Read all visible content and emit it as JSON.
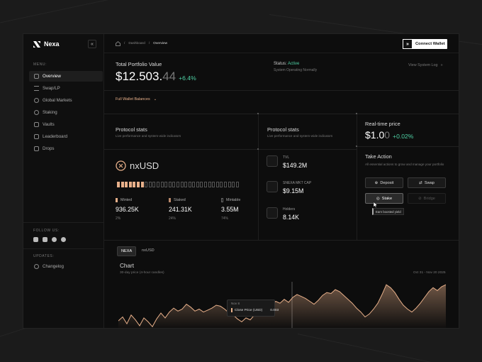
{
  "app": {
    "name": "Nexa",
    "collapse_icon": "«"
  },
  "sidebar": {
    "menu_label": "MENU:",
    "items": [
      {
        "label": "Overview",
        "icon": "grid-icon"
      },
      {
        "label": "Swap/LP",
        "icon": "swap-icon"
      },
      {
        "label": "Global Markets",
        "icon": "globe-icon"
      },
      {
        "label": "Staking",
        "icon": "stack-icon"
      },
      {
        "label": "Vaults",
        "icon": "vault-icon"
      },
      {
        "label": "Leaderboard",
        "icon": "trophy-icon"
      },
      {
        "label": "Drops",
        "icon": "gift-icon"
      }
    ],
    "follow_label": "FOLLOW US:",
    "socials": [
      "discord-icon",
      "x-icon",
      "telegram-icon",
      "github-icon"
    ],
    "updates_label": "UPDATES:",
    "changelog": "Changelog"
  },
  "header": {
    "breadcrumbs": [
      "Dashboard",
      "Overview"
    ],
    "connect_label": "Connect Wallet"
  },
  "portfolio": {
    "title": "Total Portfolio Value",
    "value_main": "$12.503.",
    "value_cents": "44",
    "change": "+6.4%",
    "status_prefix": "Status:",
    "status_value": "Active",
    "status_sub": "System Operating Normally",
    "view_log": "View System Log",
    "wallet_balances": "Full Wallet Balances"
  },
  "protocol_left": {
    "title": "Protocol stats",
    "subtitle": "Live performance and system-wide indicators",
    "token": "nxUSD",
    "fill": 0.22,
    "metrics": [
      {
        "label": "Minted",
        "value": "936.25K",
        "pct": "2%"
      },
      {
        "label": "Staked",
        "value": "241.31K",
        "pct": "24%"
      },
      {
        "label": "Mintable",
        "value": "3.55M",
        "pct": "74%"
      }
    ]
  },
  "protocol_right": {
    "title": "Protocol stats",
    "subtitle": "Live performance and system-wide indicators",
    "metrics": [
      {
        "label": "TVL",
        "value": "$149.2M"
      },
      {
        "label": "SNEXA MKT CAP",
        "value": "$9.15M"
      },
      {
        "label": "Holders",
        "value": "8.14K"
      }
    ]
  },
  "realtime": {
    "title": "Real-time price",
    "price_main": "$1.0",
    "price_dim": "0",
    "change": "+0.02%"
  },
  "actions": {
    "title": "Take Action",
    "subtitle": "All essential actions to grow and manage your portfolio",
    "deposit": "Deposit",
    "swap": "Swap",
    "stake": "Stake",
    "bridge": "Bridge",
    "tooltip": "Earn boosted yield"
  },
  "chart_section": {
    "tabs": [
      "NEXA",
      "nxUSD"
    ],
    "title": "Chart",
    "subtitle": "30-day price (4-hour candles)",
    "range": "Oct 31 - Nov 20 2025",
    "tooltip_date": "Nov 8",
    "tooltip_label": "Close Price (USD)",
    "tooltip_value": "0.003"
  },
  "colors": {
    "accent": "#4fd1a5",
    "orange": "#e8b08a",
    "bg": "#0d0d0d"
  },
  "chart_data": {
    "type": "line",
    "title": "Chart",
    "subtitle": "30-day price (4-hour candles)",
    "series": [
      {
        "values": [
          0.0018,
          0.0022,
          0.0015,
          0.0024,
          0.0019,
          0.0013,
          0.0021,
          0.0017,
          0.0012,
          0.002,
          0.0026,
          0.0021,
          0.0027,
          0.0031,
          0.0028,
          0.003,
          0.0035,
          0.0032,
          0.0028,
          0.003,
          0.0027,
          0.0029,
          0.0031,
          0.0034,
          0.0033,
          0.003,
          0.0026,
          0.0024,
          0.002,
          0.0017,
          0.0021,
          0.0019,
          0.0024,
          0.0029,
          0.0027,
          0.003,
          0.0034,
          0.0038,
          0.0036,
          0.004,
          0.0037,
          0.0042,
          0.0045,
          0.0043,
          0.0041,
          0.0038,
          0.0035,
          0.0039,
          0.0044,
          0.0047,
          0.0046,
          0.005,
          0.0048,
          0.0044,
          0.004,
          0.0036,
          0.0031,
          0.0027,
          0.0022,
          0.0025,
          0.003,
          0.0036,
          0.0045,
          0.0055,
          0.0052,
          0.0047,
          0.004,
          0.0034,
          0.003,
          0.0027,
          0.0031,
          0.0036,
          0.0042,
          0.0048,
          0.0052,
          0.0049,
          0.0053,
          0.0055
        ]
      }
    ]
  }
}
